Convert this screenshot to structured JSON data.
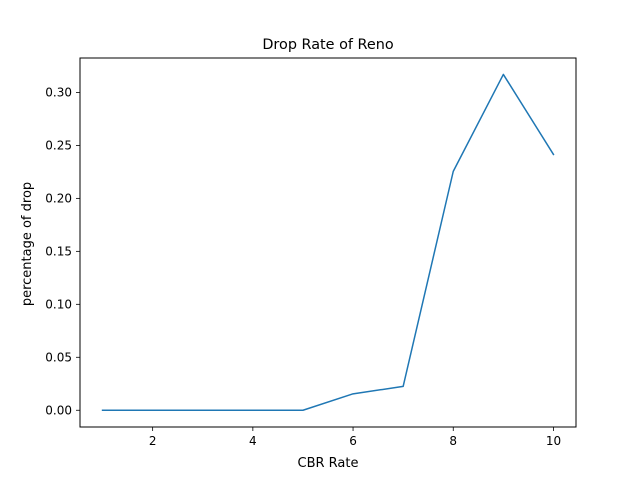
{
  "chart_data": {
    "type": "line",
    "title": "Drop Rate of Reno",
    "xlabel": "CBR Rate",
    "ylabel": "percentage of drop",
    "xlim": [
      0.55,
      10.45
    ],
    "ylim": [
      -0.0158,
      0.3325
    ],
    "xticks": [
      2,
      4,
      6,
      8,
      10
    ],
    "yticks": [
      0.0,
      0.05,
      0.1,
      0.15,
      0.2,
      0.25,
      0.3
    ],
    "xtick_labels": [
      "2",
      "4",
      "6",
      "8",
      "10"
    ],
    "ytick_labels": [
      "0.00",
      "0.05",
      "0.10",
      "0.15",
      "0.20",
      "0.25",
      "0.30"
    ],
    "grid": false,
    "legend": "none",
    "series": [
      {
        "color": "#1f77b4",
        "x": [
          1,
          2,
          3,
          4,
          5,
          6,
          7,
          8,
          9,
          10
        ],
        "y": [
          0.0,
          0.0,
          0.0,
          0.0,
          0.0,
          0.0155,
          0.0225,
          0.2255,
          0.317,
          0.2415
        ]
      }
    ]
  }
}
